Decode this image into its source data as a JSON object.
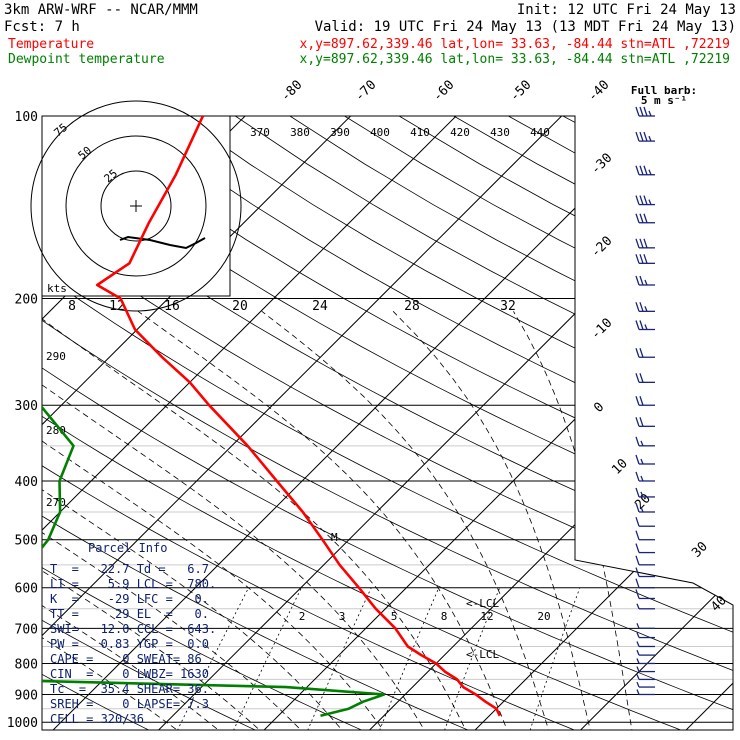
{
  "header": {
    "model": "3km ARW-WRF -- NCAR/MMM",
    "init": "Init: 12 UTC Fri 24 May 13",
    "fcst": "Fcst:     7 h",
    "valid": "Valid: 19 UTC Fri 24 May 13 (13 MDT Fri 24 May 13)",
    "temperature_label": "Temperature",
    "temperature_info": "x,y=897.62,339.46   lat,lon= 33.63, -84.44  stn=ATL ,72219",
    "dewpoint_label": "Dewpoint temperature",
    "dewpoint_info": "x,y=897.62,339.46   lat,lon= 33.63, -84.44  stn=ATL ,72219"
  },
  "colors": {
    "temperature": "#ff0000",
    "dewpoint": "#008000",
    "wind": "#1a237e",
    "info": "#0b1f6e"
  },
  "barb_note": {
    "line1": "Full barb:",
    "line2": "5 m s⁻¹"
  },
  "chart_data": {
    "type": "line",
    "chart": "skew-T log-p",
    "ylabel": "",
    "y_ticks": [
      100,
      200,
      300,
      400,
      500,
      600,
      700,
      800,
      900,
      1000
    ],
    "ylim": [
      1000,
      100
    ],
    "isotherm_labels": [
      "-80",
      "-70",
      "-60",
      "-50",
      "-40",
      "-30",
      "-20",
      "-10",
      "0",
      "10",
      "20",
      "30",
      "40"
    ],
    "theta_e_labels": [
      "370",
      "380",
      "390",
      "400",
      "410",
      "420",
      "430",
      "440"
    ],
    "mixing_ratio_labels": [
      "2",
      "3",
      "5",
      "8",
      "12",
      "20"
    ],
    "dry_adiabat_labels": [
      "290",
      "280",
      "270"
    ],
    "hodograph": {
      "speed_labels": [
        "8",
        "12",
        "16",
        "20",
        "24",
        "28",
        "32"
      ],
      "unit": "kts",
      "ring_labels": [
        "25",
        "50",
        "75"
      ]
    },
    "markers": {
      "lcl": "<-LCL",
      "lcl2": "<-LCL",
      "m": "M"
    },
    "series": [
      {
        "name": "Temperature",
        "p": [
          976,
          950,
          925,
          900,
          875,
          850,
          825,
          800,
          775,
          750,
          700,
          650,
          600,
          550,
          500,
          450,
          400,
          350,
          300,
          275,
          250,
          225,
          200,
          190,
          175,
          150,
          125,
          100
        ],
        "t": [
          21.0,
          20.0,
          18.3,
          16.7,
          14.8,
          13.5,
          11.6,
          10.0,
          7.8,
          5.7,
          2.8,
          -0.9,
          -4.5,
          -8.5,
          -12.5,
          -17.0,
          -22.4,
          -28.5,
          -36.0,
          -40.0,
          -45.0,
          -50.2,
          -54.5,
          -58.0,
          -57.0,
          -59.0,
          -61.0,
          -64.0
        ]
      },
      {
        "name": "Dewpoint temperature",
        "p": [
          976,
          950,
          925,
          900,
          875,
          850,
          825,
          800,
          775,
          750,
          700,
          650,
          600,
          550,
          500,
          450,
          400,
          350,
          300,
          275,
          250,
          225,
          200,
          175,
          150,
          125,
          100
        ],
        "t": [
          4.0,
          6.0,
          6.7,
          8.0,
          -2.0,
          -32.0,
          -58.5,
          -72.0,
          -55.5,
          -48.0,
          -40.0,
          -39.0,
          -38.0,
          -38.0,
          -38.5,
          -40.0,
          -43.0,
          -45.0,
          -52.0,
          -56.0,
          -58.0,
          -63.0,
          -67.0,
          -69.0,
          -74.0,
          -80.0,
          -84.0
        ]
      }
    ],
    "wind_barbs": [
      {
        "p": 100,
        "spd": 35,
        "dir": 265
      },
      {
        "p": 110,
        "spd": 35,
        "dir": 265
      },
      {
        "p": 125,
        "spd": 35,
        "dir": 262
      },
      {
        "p": 140,
        "spd": 35,
        "dir": 262
      },
      {
        "p": 150,
        "spd": 30,
        "dir": 260
      },
      {
        "p": 165,
        "spd": 30,
        "dir": 262
      },
      {
        "p": 175,
        "spd": 30,
        "dir": 262
      },
      {
        "p": 190,
        "spd": 25,
        "dir": 262
      },
      {
        "p": 210,
        "spd": 25,
        "dir": 262
      },
      {
        "p": 225,
        "spd": 25,
        "dir": 262
      },
      {
        "p": 250,
        "spd": 20,
        "dir": 262
      },
      {
        "p": 275,
        "spd": 20,
        "dir": 262
      },
      {
        "p": 300,
        "spd": 20,
        "dir": 262
      },
      {
        "p": 325,
        "spd": 20,
        "dir": 262
      },
      {
        "p": 350,
        "spd": 15,
        "dir": 262
      },
      {
        "p": 375,
        "spd": 15,
        "dir": 262
      },
      {
        "p": 400,
        "spd": 15,
        "dir": 262
      },
      {
        "p": 425,
        "spd": 15,
        "dir": 262
      },
      {
        "p": 450,
        "spd": 15,
        "dir": 262
      },
      {
        "p": 475,
        "spd": 10,
        "dir": 262
      },
      {
        "p": 500,
        "spd": 10,
        "dir": 262
      },
      {
        "p": 525,
        "spd": 10,
        "dir": 262
      },
      {
        "p": 550,
        "spd": 10,
        "dir": 262
      },
      {
        "p": 575,
        "spd": 10,
        "dir": 262
      },
      {
        "p": 600,
        "spd": 10,
        "dir": 270
      },
      {
        "p": 625,
        "spd": 10,
        "dir": 270
      },
      {
        "p": 650,
        "spd": 5,
        "dir": 270
      },
      {
        "p": 700,
        "spd": 5,
        "dir": 270
      },
      {
        "p": 725,
        "spd": 5,
        "dir": 270
      },
      {
        "p": 750,
        "spd": 5,
        "dir": 270
      },
      {
        "p": 775,
        "spd": 5,
        "dir": 280
      },
      {
        "p": 800,
        "spd": 5,
        "dir": 280
      },
      {
        "p": 825,
        "spd": 5,
        "dir": 280
      },
      {
        "p": 850,
        "spd": 5,
        "dir": 280
      },
      {
        "p": 875,
        "spd": 5,
        "dir": 280
      },
      {
        "p": 900,
        "spd": 5,
        "dir": 280
      }
    ]
  },
  "parcel_info": {
    "title": "Parcel Info",
    "rows": [
      "T  =   22.7 Td =   6.7",
      "LI =    5.9 LCL =  780.",
      "K  =    -29 LFC =   0.",
      "TT =     29 EL  =   0.",
      "SWI=   12.0 CCL =  643.",
      "PW =   0.83 YGP =  0.0",
      "CAPE =    0 SWEAT= 86",
      "CIN  =    0 LWBZ= 1630",
      "Tc  =  35.4 SHEAR= 36.",
      "SREH =    0 LAPSE= 7.3",
      "CELL = 320/36"
    ]
  }
}
